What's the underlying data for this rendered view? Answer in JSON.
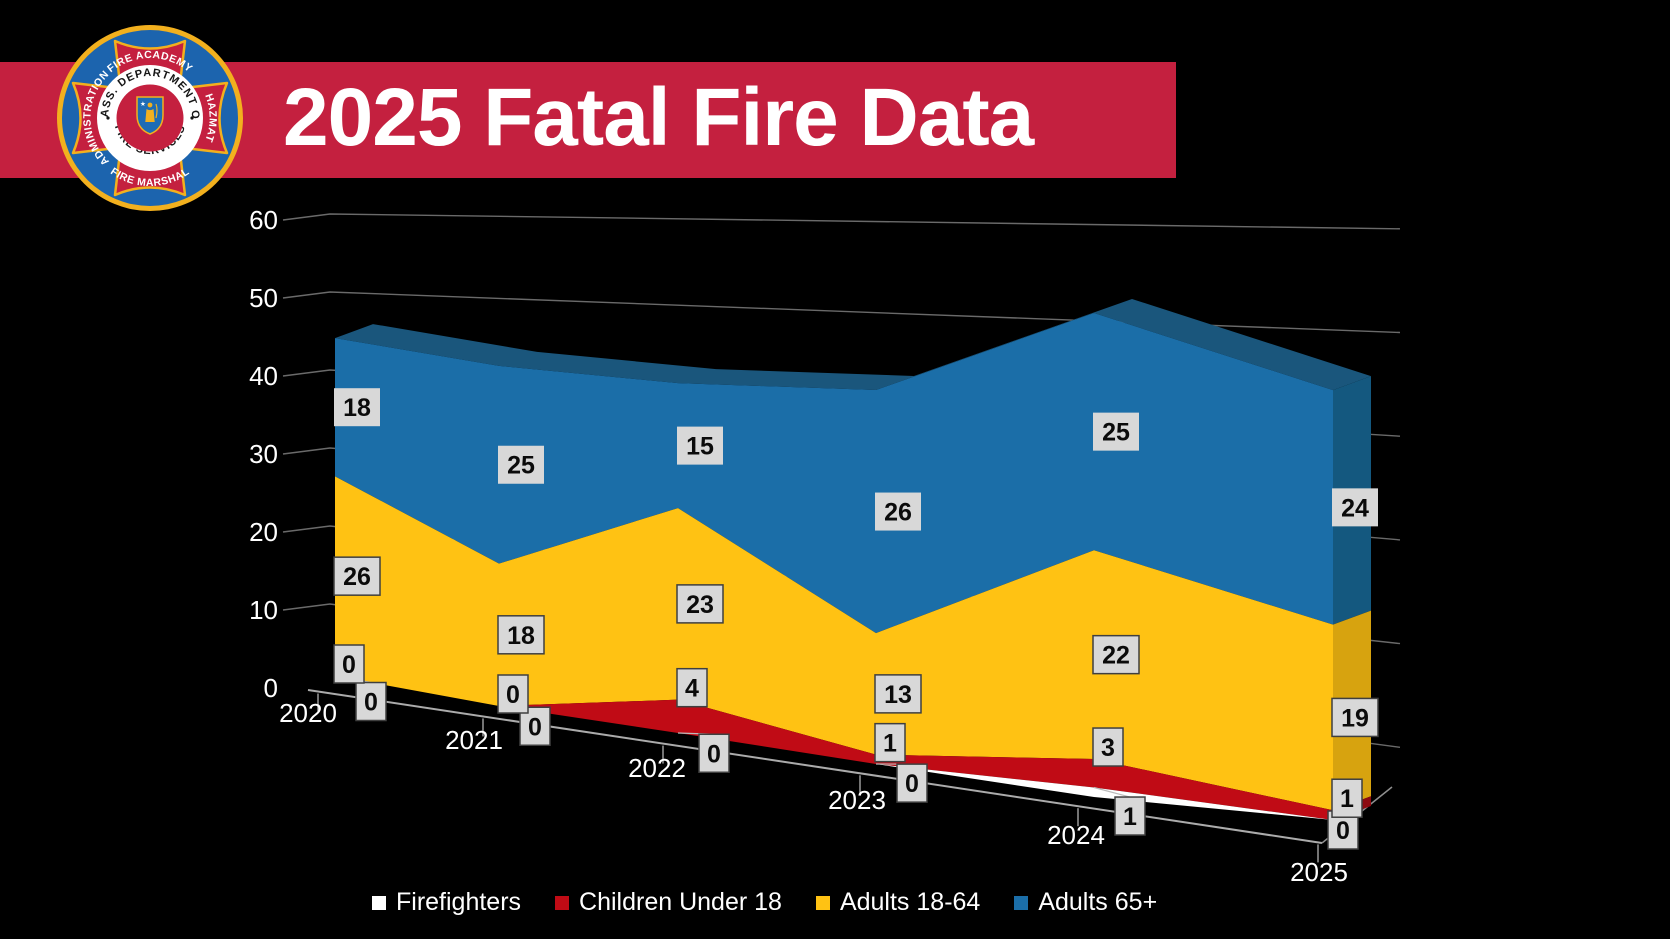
{
  "header": {
    "title": "2025 Fatal Fire Data"
  },
  "colors": {
    "background": "#000000",
    "banner_red": "#C4203F",
    "label_box": "#D8D8D8",
    "label_box_border": "#3F3F3F",
    "gridline": "#6A6A6A",
    "axis_line": "#ABABAB",
    "axis_text": "#FFFFFF"
  },
  "seal": {
    "ring_top": "MASS. DEPARTMENT OF",
    "ring_bottom": "FIRE SERVICES",
    "arm_top": "FIRE ACADEMY",
    "arm_right": "HAZMAT",
    "arm_bottom": "FIRE MARSHAL",
    "arm_left": "ADMINISTRATION"
  },
  "chart_data": {
    "type": "area",
    "variant": "3d-stacked-area",
    "title": "2025 Fatal Fire Data",
    "categories": [
      "2020",
      "2021",
      "2022",
      "2023",
      "2024",
      "2025"
    ],
    "series": [
      {
        "name": "Firefighters",
        "color": "#FFFFFF",
        "side_color": "#D0D0D0",
        "values": [
          0,
          0,
          0,
          0,
          1,
          0
        ]
      },
      {
        "name": "Children Under 18",
        "color": "#C00B15",
        "side_color": "#8C0A10",
        "values": [
          0,
          0,
          4,
          1,
          3,
          1
        ]
      },
      {
        "name": "Adults 18-64",
        "color": "#FFC213",
        "side_color": "#D7A30F",
        "values": [
          26,
          18,
          23,
          13,
          22,
          19
        ]
      },
      {
        "name": "Adults 65+",
        "color": "#1B6EA8",
        "side_color": "#14587F",
        "top_face_color": "#1A567C",
        "values": [
          18,
          25,
          15,
          26,
          25,
          24
        ]
      }
    ],
    "totals": [
      44,
      43,
      42,
      40,
      51,
      44
    ],
    "ylim": [
      0,
      60
    ],
    "ytick_step": 10,
    "yticks": [
      0,
      10,
      20,
      30,
      40,
      50,
      60
    ],
    "grid": true,
    "data_labels": true,
    "legend_position": "bottom"
  }
}
